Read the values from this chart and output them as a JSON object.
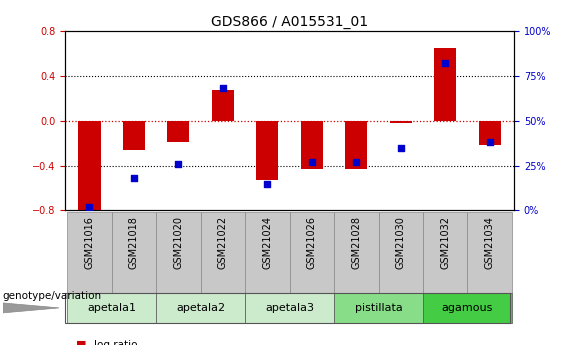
{
  "title": "GDS866 / A015531_01",
  "samples": [
    "GSM21016",
    "GSM21018",
    "GSM21020",
    "GSM21022",
    "GSM21024",
    "GSM21026",
    "GSM21028",
    "GSM21030",
    "GSM21032",
    "GSM21034"
  ],
  "log_ratios": [
    -0.82,
    -0.26,
    -0.19,
    0.27,
    -0.53,
    -0.43,
    -0.43,
    -0.02,
    0.65,
    -0.22
  ],
  "percentile_ranks": [
    2,
    18,
    26,
    68,
    15,
    27,
    27,
    35,
    82,
    38
  ],
  "groups": [
    {
      "name": "apetala1",
      "samples": [
        0,
        1
      ],
      "color": "#cceacc"
    },
    {
      "name": "apetala2",
      "samples": [
        2,
        3
      ],
      "color": "#cceacc"
    },
    {
      "name": "apetala3",
      "samples": [
        4,
        5
      ],
      "color": "#cceacc"
    },
    {
      "name": "pistillata",
      "samples": [
        6,
        7
      ],
      "color": "#88dd88"
    },
    {
      "name": "agamous",
      "samples": [
        8,
        9
      ],
      "color": "#44cc44"
    }
  ],
  "ylim_left": [
    -0.8,
    0.8
  ],
  "ylim_right": [
    0,
    100
  ],
  "yticks_left": [
    -0.8,
    -0.4,
    0.0,
    0.4,
    0.8
  ],
  "yticks_right": [
    0,
    25,
    50,
    75,
    100
  ],
  "bar_color": "#cc0000",
  "dot_color": "#0000cc",
  "hline_color": "#cc0000",
  "grid_color": "#000000",
  "bar_width": 0.5,
  "dot_size": 25,
  "title_fontsize": 10,
  "tick_fontsize": 7,
  "label_fontsize": 7.5,
  "group_label_fontsize": 8,
  "legend_fontsize": 7.5,
  "sample_box_color": "#c8c8c8"
}
